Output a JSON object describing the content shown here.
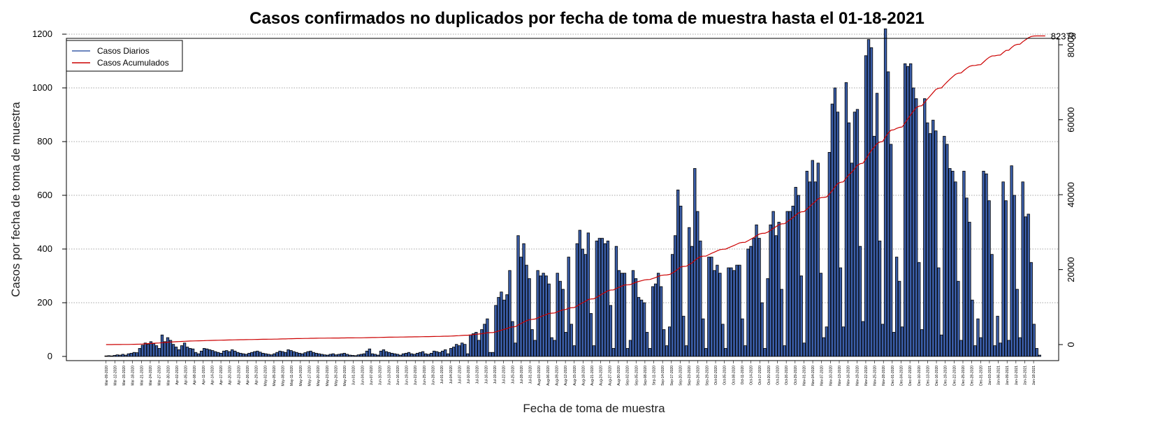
{
  "chart_data": {
    "type": "bar",
    "title": "Casos confirmados no duplicados por fecha de toma de muestra hasta el 01-18-2021",
    "xlabel": "Fecha de toma de muestra",
    "ylabel": "Casos por fecha de toma de muestra",
    "ylim": [
      0,
      1200
    ],
    "y_ticks": [
      "0",
      "200",
      "400",
      "600",
      "800",
      "1000",
      "1200"
    ],
    "y2lim": [
      0,
      86000
    ],
    "y2_ticks": [
      "0",
      "20000",
      "40000",
      "60000",
      "80000"
    ],
    "x_tick_labels": [
      "Mar-09-2020",
      "Mar-12-2020",
      "Mar-15-2020",
      "Mar-18-2020",
      "Mar-21-2020",
      "Mar-24-2020",
      "Mar-27-2020",
      "Mar-30-2020",
      "Apr-02-2020",
      "Apr-05-2020",
      "Apr-08-2020",
      "Apr-11-2020",
      "Apr-14-2020",
      "Apr-17-2020",
      "Apr-20-2020",
      "Apr-23-2020",
      "Apr-26-2020",
      "Apr-29-2020",
      "May-02-2020",
      "May-05-2020",
      "May-08-2020",
      "May-11-2020",
      "May-14-2020",
      "May-17-2020",
      "May-20-2020",
      "May-23-2020",
      "May-26-2020",
      "May-29-2020",
      "Jun-01-2020",
      "Jun-04-2020",
      "Jun-07-2020",
      "Jun-10-2020",
      "Jun-13-2020",
      "Jun-16-2020",
      "Jun-19-2020",
      "Jun-22-2020",
      "Jun-25-2020",
      "Jun-28-2020",
      "Jul-01-2020",
      "Jul-04-2020",
      "Jul-07-2020",
      "Jul-10-2020",
      "Jul-13-2020",
      "Jul-16-2020",
      "Jul-19-2020",
      "Jul-22-2020",
      "Jul-25-2020",
      "Jul-28-2020",
      "Jul-31-2020",
      "Aug-03-2020",
      "Aug-06-2020",
      "Aug-09-2020",
      "Aug-12-2020",
      "Aug-15-2020",
      "Aug-18-2020",
      "Aug-21-2020",
      "Aug-24-2020",
      "Aug-27-2020",
      "Aug-30-2020",
      "Sep-02-2020",
      "Sep-05-2020",
      "Sep-08-2020",
      "Sep-11-2020",
      "Sep-14-2020",
      "Sep-17-2020",
      "Sep-20-2020",
      "Sep-23-2020",
      "Sep-26-2020",
      "Sep-29-2020",
      "Oct-02-2020",
      "Oct-05-2020",
      "Oct-08-2020",
      "Oct-11-2020",
      "Oct-14-2020",
      "Oct-17-2020",
      "Oct-20-2020",
      "Oct-23-2020",
      "Oct-26-2020",
      "Oct-29-2020",
      "Nov-01-2020",
      "Nov-04-2020",
      "Nov-07-2020",
      "Nov-10-2020",
      "Nov-13-2020",
      "Nov-16-2020",
      "Nov-19-2020",
      "Nov-22-2020",
      "Nov-25-2020",
      "Nov-28-2020",
      "Dec-01-2020",
      "Dec-04-2020",
      "Dec-07-2020",
      "Dec-10-2020",
      "Dec-13-2020",
      "Dec-16-2020",
      "Dec-19-2020",
      "Dec-22-2020",
      "Dec-25-2020",
      "Dec-28-2020",
      "Dec-31-2020",
      "Jan-03-2021",
      "Jan-06-2021",
      "Jan-09-2021",
      "Jan-12-2021",
      "Jan-15-2021",
      "Jan-18-2021"
    ],
    "series": [
      {
        "name": "Casos Diarios",
        "color": "#3b5ea8",
        "values": [
          2,
          3,
          2,
          4,
          6,
          5,
          8,
          5,
          10,
          12,
          15,
          14,
          30,
          42,
          50,
          45,
          55,
          48,
          40,
          30,
          80,
          55,
          70,
          60,
          45,
          35,
          25,
          40,
          50,
          35,
          30,
          28,
          15,
          10,
          20,
          30,
          28,
          25,
          22,
          18,
          15,
          12,
          20,
          22,
          18,
          25,
          20,
          15,
          12,
          10,
          8,
          12,
          15,
          18,
          20,
          16,
          12,
          10,
          8,
          6,
          10,
          15,
          20,
          18,
          15,
          25,
          22,
          18,
          15,
          12,
          10,
          14,
          18,
          20,
          15,
          12,
          10,
          8,
          6,
          5,
          8,
          10,
          6,
          8,
          10,
          12,
          8,
          5,
          4,
          3,
          6,
          8,
          10,
          20,
          28,
          10,
          8,
          5,
          20,
          25,
          18,
          15,
          12,
          10,
          8,
          5,
          10,
          12,
          15,
          10,
          8,
          12,
          15,
          18,
          10,
          8,
          12,
          20,
          18,
          15,
          20,
          25,
          10,
          30,
          35,
          45,
          40,
          50,
          45,
          10,
          80,
          85,
          90,
          60,
          100,
          120,
          140,
          15,
          15,
          190,
          220,
          240,
          210,
          230,
          320,
          130,
          50,
          450,
          370,
          420,
          340,
          290,
          100,
          60,
          320,
          300,
          310,
          300,
          270,
          70,
          60,
          310,
          280,
          250,
          90,
          370,
          120,
          40,
          420,
          470,
          400,
          380,
          460,
          160,
          40,
          430,
          440,
          440,
          420,
          430,
          190,
          30,
          410,
          320,
          310,
          310,
          30,
          60,
          320,
          290,
          220,
          210,
          200,
          90,
          30,
          260,
          270,
          310,
          260,
          100,
          40,
          110,
          380,
          450,
          620,
          560,
          150,
          40,
          480,
          410,
          700,
          540,
          430,
          140,
          30,
          370,
          370,
          320,
          340,
          310,
          120,
          30,
          330,
          330,
          320,
          340,
          340,
          140,
          40,
          400,
          410,
          440,
          490,
          440,
          200,
          30,
          290,
          490,
          540,
          450,
          500,
          250,
          40,
          540,
          540,
          560,
          630,
          600,
          300,
          50,
          690,
          650,
          730,
          650,
          720,
          310,
          70,
          110,
          760,
          940,
          1000,
          910,
          330,
          110,
          1020,
          870,
          720,
          910,
          920,
          410,
          130,
          1120,
          1180,
          1150,
          820,
          980,
          430,
          120,
          1220,
          1060,
          790,
          90,
          370,
          280,
          110,
          1090,
          1080,
          1090,
          1000,
          960,
          350,
          100,
          960,
          870,
          830,
          880,
          840,
          330,
          80,
          820,
          790,
          700,
          690,
          650,
          280,
          60,
          690,
          590,
          500,
          210,
          40,
          140,
          70,
          690,
          680,
          580,
          380,
          40,
          150,
          50,
          650,
          580,
          60,
          710,
          600,
          250,
          70,
          650,
          520,
          530,
          350,
          120,
          30,
          5
        ]
      },
      {
        "name": "Casos Acumulados",
        "color": "#cc0000",
        "end_label": "82378"
      }
    ],
    "legend_position": "top-left",
    "grid": "horizontal-dotted"
  }
}
